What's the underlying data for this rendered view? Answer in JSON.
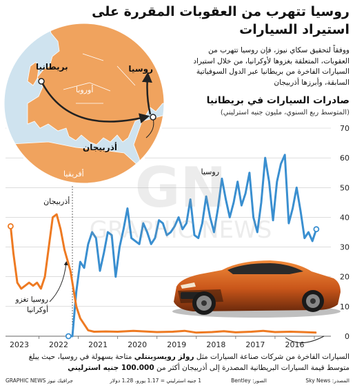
{
  "headline": "روسيا تتهرب من العقوبات المقررة على استيراد السيارات",
  "intro": "ووفقاً لتحقيق سكاي نيوز، فإن روسيا تتهرب من العقوبات، المتعلقة بغزوها لأوكرانيا، من خلال استيراد السيارات الفاخرة من بريطانيا عبر الدول السوفياتية السابقة، وأبرزها أذربيجان",
  "map": {
    "labels": {
      "britain": "بريطانيا",
      "russia": "روسيا",
      "europe": "أوروبا",
      "azerbaijan": "أذربيجان",
      "africa": "أفريقيا"
    },
    "colors": {
      "land": "#f0a35e",
      "sea": "#cfe3ef",
      "border": "#ffffff",
      "arrow": "#222222"
    }
  },
  "chart_data": {
    "type": "line",
    "title": "صادرات السيارات في بريطانيا",
    "subtitle": "(المتوسط ربع السنوي، مليون جنيه استرليني)",
    "x_axis": {
      "direction": "right-to-left",
      "tick_labels": [
        "2016",
        "2017",
        "2018",
        "2019",
        "2020",
        "2021",
        "2022",
        "2023"
      ],
      "range": [
        2015.58,
        2023.85
      ]
    },
    "y_axis": {
      "side": "right",
      "range": [
        0,
        70
      ],
      "ticks": [
        0,
        10,
        20,
        30,
        40,
        50,
        60,
        70
      ]
    },
    "grid": true,
    "series": [
      {
        "name": "روسيا",
        "color": "#3a8fd0",
        "points": [
          [
            2015.95,
            36
          ],
          [
            2016.05,
            32
          ],
          [
            2016.15,
            35
          ],
          [
            2016.25,
            33
          ],
          [
            2016.35,
            42
          ],
          [
            2016.45,
            50
          ],
          [
            2016.55,
            43
          ],
          [
            2016.65,
            38
          ],
          [
            2016.75,
            61
          ],
          [
            2016.85,
            58
          ],
          [
            2016.95,
            52
          ],
          [
            2017.05,
            39
          ],
          [
            2017.15,
            52
          ],
          [
            2017.25,
            60
          ],
          [
            2017.35,
            45
          ],
          [
            2017.45,
            35
          ],
          [
            2017.55,
            40
          ],
          [
            2017.65,
            55
          ],
          [
            2017.75,
            48
          ],
          [
            2017.85,
            44
          ],
          [
            2017.95,
            52
          ],
          [
            2018.05,
            45
          ],
          [
            2018.15,
            40
          ],
          [
            2018.25,
            46
          ],
          [
            2018.35,
            53
          ],
          [
            2018.45,
            43
          ],
          [
            2018.55,
            35
          ],
          [
            2018.65,
            40
          ],
          [
            2018.75,
            47
          ],
          [
            2018.85,
            38
          ],
          [
            2018.95,
            33
          ],
          [
            2019.05,
            34
          ],
          [
            2019.15,
            46
          ],
          [
            2019.25,
            38
          ],
          [
            2019.35,
            36
          ],
          [
            2019.45,
            40
          ],
          [
            2019.55,
            37
          ],
          [
            2019.65,
            35
          ],
          [
            2019.75,
            34
          ],
          [
            2019.85,
            38
          ],
          [
            2019.95,
            39
          ],
          [
            2020.05,
            33
          ],
          [
            2020.15,
            31
          ],
          [
            2020.25,
            35
          ],
          [
            2020.35,
            38
          ],
          [
            2020.45,
            31
          ],
          [
            2020.55,
            32
          ],
          [
            2020.65,
            33
          ],
          [
            2020.75,
            43
          ],
          [
            2020.85,
            36
          ],
          [
            2020.95,
            30
          ],
          [
            2021.05,
            20
          ],
          [
            2021.15,
            34
          ],
          [
            2021.25,
            35
          ],
          [
            2021.35,
            28
          ],
          [
            2021.45,
            22
          ],
          [
            2021.55,
            33
          ],
          [
            2021.65,
            35
          ],
          [
            2021.75,
            31
          ],
          [
            2021.85,
            23
          ],
          [
            2021.95,
            25
          ],
          [
            2022.05,
            15
          ],
          [
            2022.15,
            0
          ],
          [
            2022.25,
            0
          ]
        ],
        "markers": {
          "end": [
            2015.95,
            36
          ],
          "start": [
            2022.25,
            0
          ]
        },
        "callout": "روسيا"
      },
      {
        "name": "أذربيجان",
        "color": "#ee7a22",
        "points": [
          [
            2015.95,
            1.2
          ],
          [
            2016.3,
            1.4
          ],
          [
            2016.6,
            1.5
          ],
          [
            2017.0,
            1.4
          ],
          [
            2017.3,
            1.8
          ],
          [
            2017.6,
            1.5
          ],
          [
            2018.0,
            1.3
          ],
          [
            2018.3,
            1.7
          ],
          [
            2018.6,
            1.4
          ],
          [
            2019.0,
            1.2
          ],
          [
            2019.3,
            1.8
          ],
          [
            2019.6,
            1.5
          ],
          [
            2020.0,
            1.4
          ],
          [
            2020.3,
            1.6
          ],
          [
            2020.6,
            1.8
          ],
          [
            2021.0,
            1.5
          ],
          [
            2021.3,
            1.6
          ],
          [
            2021.6,
            1.5
          ],
          [
            2021.75,
            2
          ],
          [
            2021.85,
            4
          ],
          [
            2021.95,
            6
          ],
          [
            2022.05,
            10
          ],
          [
            2022.2,
            22
          ],
          [
            2022.35,
            29
          ],
          [
            2022.45,
            36
          ],
          [
            2022.55,
            41
          ],
          [
            2022.65,
            40
          ],
          [
            2022.72,
            33
          ],
          [
            2022.85,
            20
          ],
          [
            2022.95,
            16
          ],
          [
            2023.05,
            18
          ],
          [
            2023.15,
            17
          ],
          [
            2023.25,
            18
          ],
          [
            2023.35,
            17
          ],
          [
            2023.45,
            16
          ],
          [
            2023.55,
            18
          ],
          [
            2023.65,
            28
          ],
          [
            2023.72,
            37
          ]
        ],
        "markers": {
          "start": [
            2023.72,
            37
          ]
        },
        "callout": "أذربيجان"
      }
    ],
    "annotations": [
      {
        "text": "روسيا تغزو أوكرانيا",
        "x": 2022.15
      }
    ]
  },
  "footnote_text": "السيارات الفاخرة من شركات صناعة السيارات مثل",
  "footnote_brands": "رولز رويس",
  "footnote_and": "و",
  "footnote_brand2": "بنتلي",
  "footnote_rest": "متاحة بسهولة في روسيا، حيث يبلغ متوسط قيمة السيارات البريطانية المصدرة إلى أذربيجان أكثر من",
  "footnote_value": "100.000 جنيه استرليني",
  "sources": {
    "source": "المصدر: Sky News",
    "photo": "الصور: Bentley",
    "rate": "1 جنيه استرليني = 1.17 يورو، 1.28 دولار",
    "credit": "GRAPHIC NEWS جرافيك نيوز"
  },
  "watermark": {
    "text": "GRAPHIC NEWS",
    "logo": "GN"
  }
}
